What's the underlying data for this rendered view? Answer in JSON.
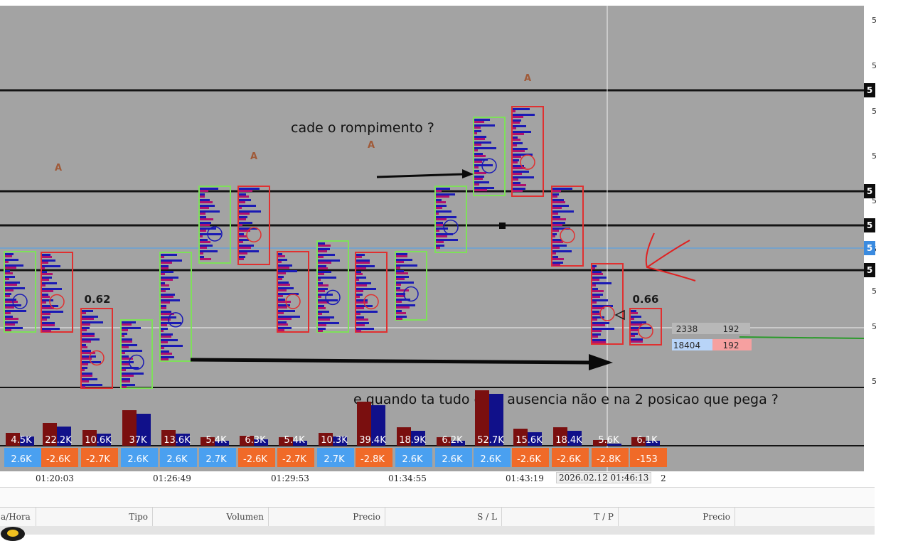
{
  "annotations": {
    "note_top": "cade o rompimento ?",
    "note_bottom": "e quando ta tudo com ausencia não e na 2 posicao que pega ?"
  },
  "chart": {
    "ratio_left": "0.62",
    "ratio_right": "0.66",
    "crosshair_label_row1": [
      "2338",
      "192"
    ],
    "crosshair_label_row2": [
      "18404",
      "192"
    ],
    "volume_labels": [
      "4.5K",
      "22.2K",
      "10.6K",
      "37K",
      "13.6K",
      "5.4K",
      "6.3K",
      "5.4K",
      "10.3K",
      "39.4K",
      "18.9K",
      "6.2K",
      "52.7K",
      "15.6K",
      "18.4K",
      "5.6K",
      "6.1K"
    ],
    "delta_labels": [
      "2.6K",
      "-2.6K",
      "-2.7K",
      "2.6K",
      "2.6K",
      "2.7K",
      "-2.6K",
      "-2.7K",
      "2.7K",
      "-2.8K",
      "2.6K",
      "2.6K",
      "2.6K",
      "-2.6K",
      "-2.6K",
      "-2.8K",
      "-153"
    ],
    "colors": {
      "background": "#a3a3a3",
      "buy": "#1a1ab4",
      "sell": "#b0126e",
      "up_box": "#7ee05a",
      "down_box": "#e03030",
      "level_line": "#141414",
      "positive": "#4aa0f0",
      "negative": "#f06a28"
    }
  },
  "price_axis": {
    "ticks": [
      "5",
      "5",
      "5",
      "5",
      "5",
      "5",
      "5",
      "5",
      "5"
    ],
    "badges": [
      "5",
      "5",
      "5",
      "5",
      "5"
    ]
  },
  "time_axis": {
    "labels": [
      "01:20:03",
      "01:26:49",
      "01:29:53",
      "01:34:55",
      "01:43:19"
    ],
    "current_label": "2026.02.12 01:46:13",
    "suffix": "2"
  },
  "orders_table": {
    "columns": [
      "a/Hora",
      "Tipo",
      "Volumen",
      "Precio",
      "S / L",
      "T / P",
      "Precio"
    ]
  }
}
